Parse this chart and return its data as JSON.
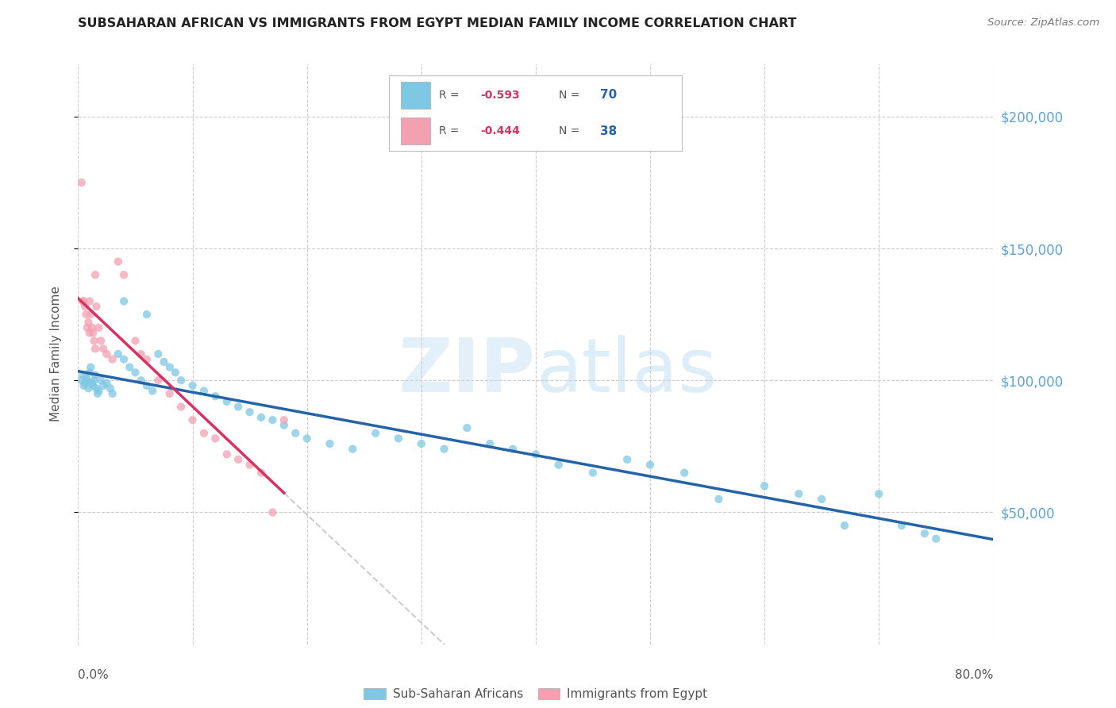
{
  "title": "SUBSAHARAN AFRICAN VS IMMIGRANTS FROM EGYPT MEDIAN FAMILY INCOME CORRELATION CHART",
  "source": "Source: ZipAtlas.com",
  "ylabel": "Median Family Income",
  "legend_blue": {
    "R": "-0.593",
    "N": "70",
    "label": "Sub-Saharan Africans"
  },
  "legend_pink": {
    "R": "-0.444",
    "N": "38",
    "label": "Immigrants from Egypt"
  },
  "blue_color": "#7ec8e3",
  "pink_color": "#f4a0b0",
  "trend_blue": "#2563a8",
  "trend_pink": "#d93060",
  "trend_dashed_color": "#cccccc",
  "ytick_color": "#5ba3d9",
  "ytick_labels": [
    "$50,000",
    "$100,000",
    "$150,000",
    "$200,000"
  ],
  "ytick_vals": [
    50000,
    100000,
    150000,
    200000
  ],
  "ymax": 220000,
  "xmax": 80.0,
  "blue_x": [
    0.3,
    0.4,
    0.5,
    0.6,
    0.7,
    0.8,
    0.9,
    1.0,
    1.1,
    1.2,
    1.3,
    1.4,
    1.5,
    1.6,
    1.7,
    1.8,
    2.0,
    2.2,
    2.5,
    2.8,
    3.0,
    3.5,
    4.0,
    4.5,
    5.0,
    5.5,
    6.0,
    6.5,
    7.0,
    7.5,
    8.0,
    8.5,
    9.0,
    10.0,
    11.0,
    12.0,
    13.0,
    14.0,
    15.0,
    16.0,
    17.0,
    18.0,
    19.0,
    20.0,
    22.0,
    24.0,
    26.0,
    28.0,
    30.0,
    32.0,
    34.0,
    36.0,
    38.0,
    40.0,
    42.0,
    45.0,
    48.0,
    50.0,
    53.0,
    56.0,
    60.0,
    63.0,
    65.0,
    67.0,
    70.0,
    72.0,
    74.0,
    75.0,
    4.0,
    6.0
  ],
  "blue_y": [
    100000,
    102000,
    98000,
    99000,
    101000,
    100000,
    97000,
    103000,
    105000,
    99000,
    98000,
    100000,
    102000,
    97000,
    95000,
    96000,
    100000,
    98000,
    99000,
    97000,
    95000,
    110000,
    108000,
    105000,
    103000,
    100000,
    98000,
    96000,
    110000,
    107000,
    105000,
    103000,
    100000,
    98000,
    96000,
    94000,
    92000,
    90000,
    88000,
    86000,
    85000,
    83000,
    80000,
    78000,
    76000,
    74000,
    80000,
    78000,
    76000,
    74000,
    82000,
    76000,
    74000,
    72000,
    68000,
    65000,
    70000,
    68000,
    65000,
    55000,
    60000,
    57000,
    55000,
    45000,
    57000,
    45000,
    42000,
    40000,
    130000,
    125000
  ],
  "pink_x": [
    0.3,
    0.4,
    0.5,
    0.6,
    0.7,
    0.8,
    0.9,
    1.0,
    1.0,
    1.1,
    1.2,
    1.3,
    1.4,
    1.5,
    1.6,
    1.8,
    2.0,
    2.2,
    2.5,
    3.0,
    3.5,
    4.0,
    5.0,
    5.5,
    6.0,
    7.0,
    8.0,
    9.0,
    10.0,
    11.0,
    12.0,
    13.0,
    14.0,
    15.0,
    16.0,
    17.0,
    18.0,
    1.5
  ],
  "pink_y": [
    175000,
    130000,
    130000,
    128000,
    125000,
    120000,
    122000,
    118000,
    130000,
    125000,
    120000,
    118000,
    115000,
    112000,
    128000,
    120000,
    115000,
    112000,
    110000,
    108000,
    145000,
    140000,
    115000,
    110000,
    108000,
    100000,
    95000,
    90000,
    85000,
    80000,
    78000,
    72000,
    70000,
    68000,
    65000,
    50000,
    85000,
    140000
  ]
}
